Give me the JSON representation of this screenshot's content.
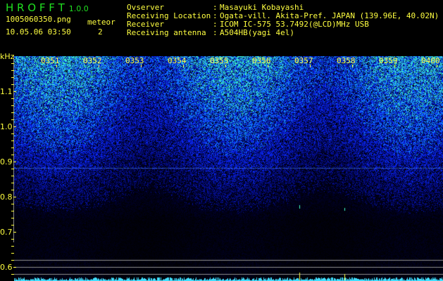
{
  "header": {
    "app_name": "H R O F F T",
    "version": "1.0.0",
    "filename": "1005060350.png",
    "datetime": "10.05.06 03:50",
    "meteor_label": "meteor",
    "meteor_count": "2"
  },
  "info": [
    {
      "label": "Ovserver",
      "value": "Masayuki Kobayashi"
    },
    {
      "label": "Receiving Location",
      "value": "Ogata-vill. Akita-Pref. JAPAN (139.96E, 40.02N)"
    },
    {
      "label": "Receiver",
      "value": "ICOM IC-575 53.7492(@LCD)MHz USB"
    },
    {
      "label": "Receiving antenna",
      "value": "A504HB(yagi 4el)"
    }
  ],
  "spectrogram": {
    "unit": "kHz",
    "freq_labels": [
      "1.1",
      "1.0",
      "0.9",
      "0.8",
      "0.7",
      "0.6"
    ],
    "time_labels": [
      "0351",
      "0352",
      "0353",
      "0354",
      "0355",
      "0356",
      "0357",
      "0358",
      "0359",
      "0400"
    ],
    "colors": {
      "noise": "#1030ff",
      "bright": "#40ffc0",
      "text": "#ffff40",
      "title": "#20e020",
      "trace": "#40e0ff"
    }
  }
}
